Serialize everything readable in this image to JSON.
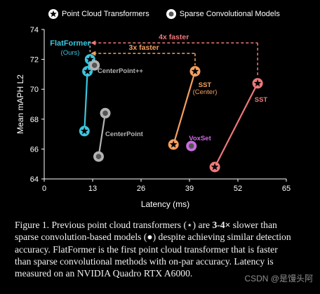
{
  "legend": {
    "items": [
      {
        "label": "Point Cloud Transformers",
        "marker": "star"
      },
      {
        "label": "Sparse Convolutional Models",
        "marker": "circle"
      }
    ]
  },
  "chart_data": {
    "type": "scatter",
    "xlabel": "Latency (ms)",
    "ylabel": "Mean mAPH L2",
    "xlim": [
      0,
      65
    ],
    "ylim": [
      64,
      74
    ],
    "xticks": [
      "0",
      "13",
      "26",
      "39",
      "52",
      "65"
    ],
    "yticks": [
      "64",
      "66",
      "68",
      "70",
      "72",
      "74"
    ],
    "grid": false,
    "series": [
      {
        "name": "FlatFormer",
        "sublabel": "(Ours)",
        "marker": "star",
        "color": "#3cc6e0",
        "x": [
          10.8,
          11.6,
          12.3
        ],
        "y": [
          67.2,
          71.2,
          72.0
        ]
      },
      {
        "name": "CenterPoint++",
        "marker": "circle",
        "color": "#b3b3b3",
        "x": [
          13.5
        ],
        "y": [
          71.6
        ]
      },
      {
        "name": "CenterPoint",
        "marker": "circle",
        "color": "#b3b3b3",
        "x": [
          14.6,
          16.4
        ],
        "y": [
          65.5,
          68.4
        ]
      },
      {
        "name": "SST",
        "sublabel": "(Center)",
        "marker": "star",
        "color": "#f5a061",
        "x": [
          34.7,
          40.5
        ],
        "y": [
          66.3,
          71.2
        ]
      },
      {
        "name": "VoxSet",
        "marker": "circle",
        "color": "#c86ddf",
        "x": [
          39.5
        ],
        "y": [
          66.2
        ]
      },
      {
        "name": "SST",
        "marker": "star",
        "color": "#f0787a",
        "x": [
          45.8,
          57.3
        ],
        "y": [
          64.8,
          70.4
        ]
      }
    ],
    "annotations": [
      {
        "text": "4x faster",
        "color": "#f0787a"
      },
      {
        "text": "3x faster",
        "color": "#f5a061"
      }
    ]
  },
  "caption": {
    "part1": "Figure 1. Previous point cloud transformers (⋆) are ",
    "bold": "3-4×",
    "part2": " slower than sparse convolution-based models (●) despite achieving similar detection accuracy. FlatFormer is the first point cloud transformer that is faster than sparse convolutional methods with on-par accuracy. Latency is measured on an NVIDIA Quadro RTX A6000."
  },
  "watermark": "CSDN @是馒头阿"
}
